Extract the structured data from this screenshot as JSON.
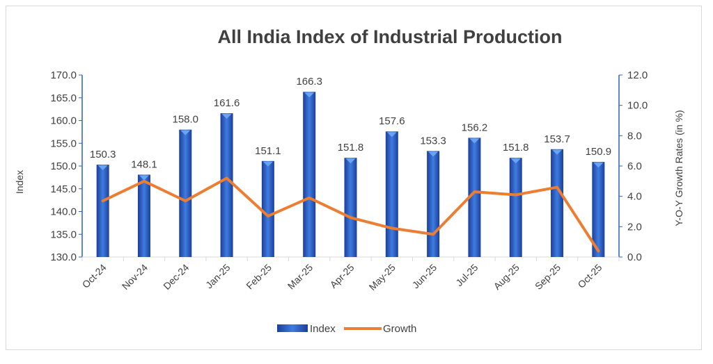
{
  "chart_data": {
    "type": "bar+line",
    "title": "All India Index of Industrial Production",
    "categories": [
      "Oct-24",
      "Nov-24",
      "Dec-24",
      "Jan-25",
      "Feb-25",
      "Mar-25",
      "Apr-25",
      "May-25",
      "Jun-25",
      "Jul-25",
      "Aug-25",
      "Sep-25",
      "Oct-25"
    ],
    "series": [
      {
        "name": "Index",
        "type": "bar",
        "axis": "left",
        "color": "#2e5fc9",
        "values": [
          150.3,
          148.1,
          158.0,
          161.6,
          151.1,
          166.3,
          151.8,
          157.6,
          153.3,
          156.2,
          151.8,
          153.7,
          150.9
        ],
        "labels": [
          "150.3",
          "148.1",
          "158.0",
          "161.6",
          "151.1",
          "166.3",
          "151.8",
          "157.6",
          "153.3",
          "156.2",
          "151.8",
          "153.7",
          "150.9"
        ]
      },
      {
        "name": "Growth",
        "type": "line",
        "axis": "right",
        "color": "#ed7d31",
        "values": [
          3.7,
          5.0,
          3.7,
          5.2,
          2.7,
          3.9,
          2.6,
          1.9,
          1.5,
          4.3,
          4.1,
          4.6,
          0.4
        ]
      }
    ],
    "ylabel": "Index",
    "y2label": "Y-O-Y Growth Rates (in %)",
    "ylim": [
      130,
      170
    ],
    "y2lim": [
      0,
      12
    ],
    "yticks": [
      "130.0",
      "135.0",
      "140.0",
      "145.0",
      "150.0",
      "155.0",
      "160.0",
      "165.0",
      "170.0"
    ],
    "y2ticks": [
      "0.0",
      "2.0",
      "4.0",
      "6.0",
      "8.0",
      "10.0",
      "12.0"
    ],
    "grid": false,
    "legend": "bottom"
  }
}
